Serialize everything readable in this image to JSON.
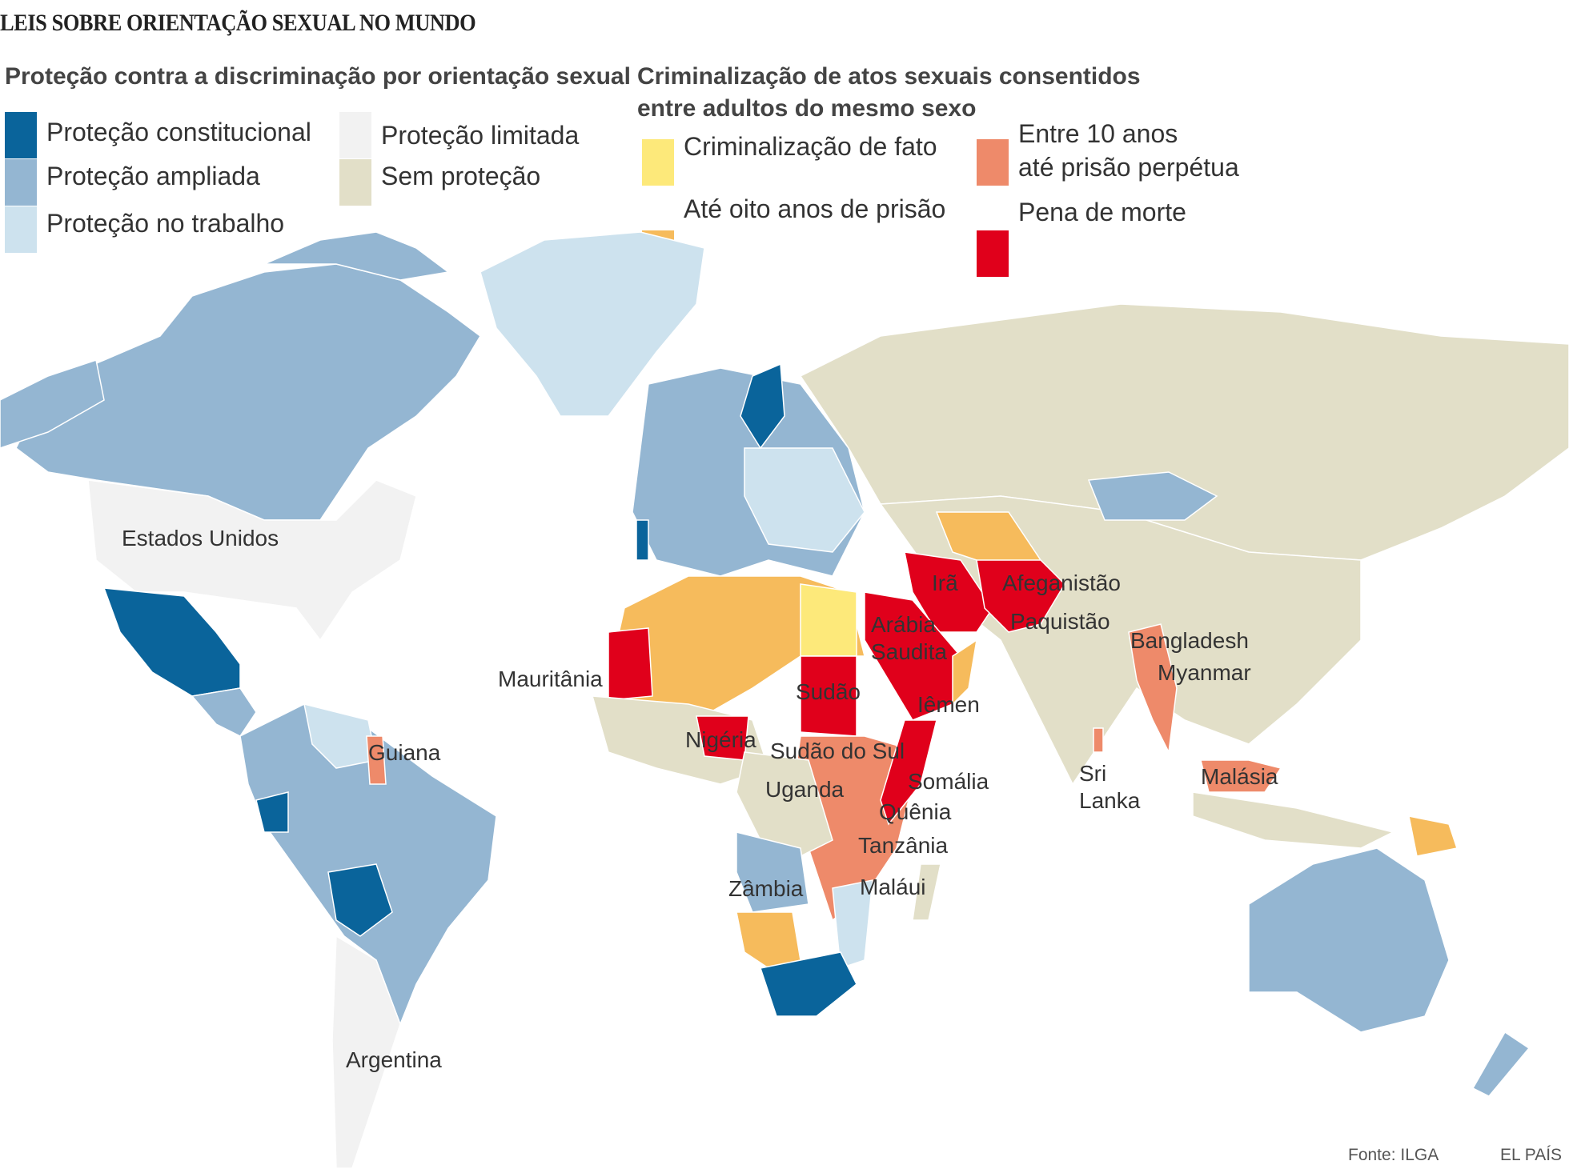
{
  "title": "LEIS SOBRE ORIENTAÇÃO SEXUAL NO MUNDO",
  "legend_protection": {
    "heading": "Proteção contra a discriminação por orientação sexual",
    "items": [
      {
        "label": "Proteção constitucional",
        "color": "#0a649b"
      },
      {
        "label": "Proteção ampliada",
        "color": "#94b6d2"
      },
      {
        "label": "Proteção no trabalho",
        "color": "#cde2ee"
      },
      {
        "label": "Proteção limitada",
        "color": "#f2f2f2"
      },
      {
        "label": "Sem proteção",
        "color": "#e2dfc8"
      }
    ]
  },
  "legend_criminalization": {
    "heading_line1": "Criminalização de atos sexuais consentidos",
    "heading_line2": "entre adultos do mesmo sexo",
    "items": [
      {
        "label": "Criminalização de fato",
        "color": "#fde97a"
      },
      {
        "label": "Até oito anos de prisão",
        "color": "#f6bb5c"
      },
      {
        "label_line1": "Entre 10 anos",
        "label_line2": "até prisão perpétua",
        "color": "#ee8a6a"
      },
      {
        "label": "Pena de morte",
        "color": "#e0001b"
      }
    ]
  },
  "country_labels": {
    "usa": "Estados Unidos",
    "guyana": "Guiana",
    "argentina": "Argentina",
    "mauritania": "Mauritânia",
    "nigeria": "Nigéria",
    "sudan": "Sudão",
    "south_sudan": "Sudão do Sul",
    "uganda": "Uganda",
    "zambia": "Zâmbia",
    "malawi": "Maláui",
    "tanzania": "Tanzânia",
    "kenya": "Quênia",
    "somalia": "Somália",
    "saudi_line1": "Arábia",
    "saudi_line2": "Saudita",
    "yemen": "Iêmen",
    "iran": "Irã",
    "afghanistan": "Afeganistão",
    "pakistan": "Paquistão",
    "bangladesh": "Bangladesh",
    "myanmar": "Myanmar",
    "sri_lanka_line1": "Sri",
    "sri_lanka_line2": "Lanka",
    "malaysia": "Malásia"
  },
  "footer": {
    "source": "Fonte: ILGA",
    "brand": "EL PAÍS"
  }
}
